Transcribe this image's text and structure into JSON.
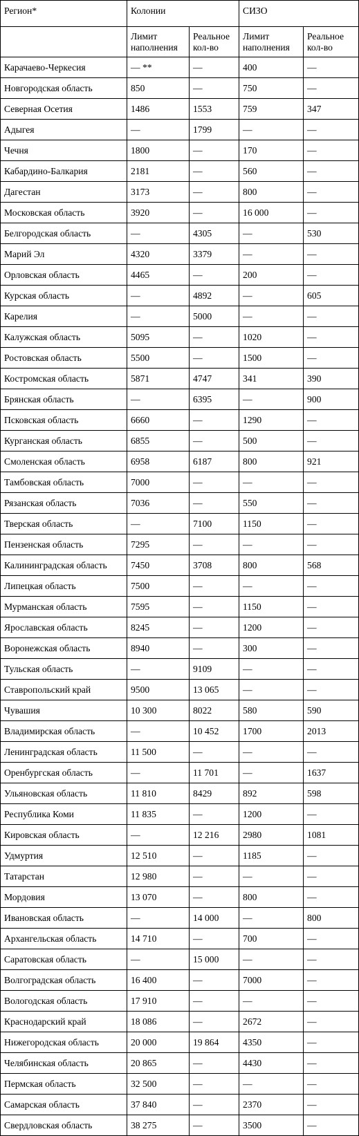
{
  "header": {
    "region": "Регион*",
    "colonies": "Колонии",
    "sizo": "СИЗО",
    "limit_line1": "Лимит",
    "limit_line2": "наполнения",
    "real_line1": "Реальное",
    "real_line2": "кол-во"
  },
  "rows": [
    [
      "Карачаево-Черкесия",
      "— **",
      "—",
      "400",
      "—"
    ],
    [
      "Новгородская область",
      "850",
      "—",
      "750",
      "—"
    ],
    [
      "Северная Осетия",
      "1486",
      "1553",
      "759",
      "347"
    ],
    [
      "Адыгея",
      "—",
      "1799",
      "—",
      "—"
    ],
    [
      "Чечня",
      "1800",
      "—",
      "170",
      "—"
    ],
    [
      "Кабардино-Балкария",
      "2181",
      "—",
      "560",
      "—"
    ],
    [
      "Дагестан",
      "3173",
      "—",
      "800",
      "—"
    ],
    [
      "Московская область",
      "3920",
      "—",
      "16 000",
      "—"
    ],
    [
      "Белгородская область",
      "—",
      "4305",
      "—",
      "530"
    ],
    [
      "Марий Эл",
      "4320",
      "3379",
      "—",
      "—"
    ],
    [
      "Орловская область",
      "4465",
      "—",
      "200",
      "—"
    ],
    [
      "Курская область",
      "—",
      "4892",
      "—",
      "605"
    ],
    [
      "Карелия",
      "—",
      "5000",
      "—",
      "—"
    ],
    [
      "Калужская область",
      "5095",
      "—",
      "1020",
      "—"
    ],
    [
      "Ростовская область",
      "5500",
      "—",
      "1500",
      "—"
    ],
    [
      "Костромская область",
      "5871",
      "4747",
      "341",
      "390"
    ],
    [
      "Брянская область",
      "—",
      "6395",
      "—",
      "900"
    ],
    [
      "Псковская область",
      "6660",
      "—",
      "1290",
      "—"
    ],
    [
      "Курганская область",
      "6855",
      "—",
      "500",
      "—"
    ],
    [
      "Смоленская область",
      "6958",
      "6187",
      "800",
      "921"
    ],
    [
      "Тамбовская область",
      "7000",
      "—",
      "—",
      "—"
    ],
    [
      "Рязанская область",
      "7036",
      "—",
      "550",
      "—"
    ],
    [
      "Тверская область",
      "—",
      "7100",
      "1150",
      "—"
    ],
    [
      "Пензенская область",
      "7295",
      "—",
      "—",
      "—"
    ],
    [
      "Калининградская область",
      "7450",
      "3708",
      "800",
      "568"
    ],
    [
      "Липецкая область",
      "7500",
      "—",
      "—",
      "—"
    ],
    [
      "Мурманская область",
      "7595",
      "—",
      "1150",
      "—"
    ],
    [
      "Ярославская область",
      "8245",
      "—",
      "1200",
      "—"
    ],
    [
      "Воронежская область",
      "8940",
      "—",
      "300",
      "—"
    ],
    [
      "Тульская область",
      "—",
      "9109",
      "—",
      "—"
    ],
    [
      "Ставропольский край",
      "9500",
      "13 065",
      "—",
      "—"
    ],
    [
      "Чувашия",
      "10 300",
      "8022",
      "580",
      "590"
    ],
    [
      "Владимирская область",
      "—",
      "10 452",
      "1700",
      "2013"
    ],
    [
      "Ленинградская область",
      "11 500",
      "—",
      "—",
      "—"
    ],
    [
      "Оренбургская область",
      "—",
      "11 701",
      "—",
      "1637"
    ],
    [
      "Ульяновская область",
      "11 810",
      "8429",
      "892",
      "598"
    ],
    [
      "Республика Коми",
      "11 835",
      "—",
      "1200",
      "—"
    ],
    [
      "Кировская область",
      "—",
      "12 216",
      "2980",
      "1081"
    ],
    [
      "Удмуртия",
      "12 510",
      "—",
      "1185",
      "—"
    ],
    [
      "Татарстан",
      "12 980",
      "—",
      "—",
      "—"
    ],
    [
      "Мордовия",
      "13 070",
      "—",
      "800",
      "—"
    ],
    [
      "Ивановская область",
      "—",
      "14 000",
      "—",
      "800"
    ],
    [
      "Архангельская область",
      "14 710",
      "—",
      "700",
      "—"
    ],
    [
      "Саратовская область",
      "—",
      "15 000",
      "—",
      "—"
    ],
    [
      "Волгоградская область",
      "16 400",
      "—",
      "7000",
      "—"
    ],
    [
      "Вологодская область",
      "17 910",
      "—",
      "—",
      "—"
    ],
    [
      "Краснодарский край",
      "18 086",
      "—",
      "2672",
      "—"
    ],
    [
      "Нижегородская область",
      "20 000",
      "19 864",
      "4350",
      "—"
    ],
    [
      "Челябинская область",
      "20 865",
      "—",
      "4430",
      "—"
    ],
    [
      "Пермская область",
      "32 500",
      "—",
      "—",
      "—"
    ],
    [
      "Самарская область",
      "37 840",
      "—",
      "2370",
      "—"
    ],
    [
      "Свердловская область",
      "38 275",
      "—",
      "3500",
      "—"
    ]
  ]
}
